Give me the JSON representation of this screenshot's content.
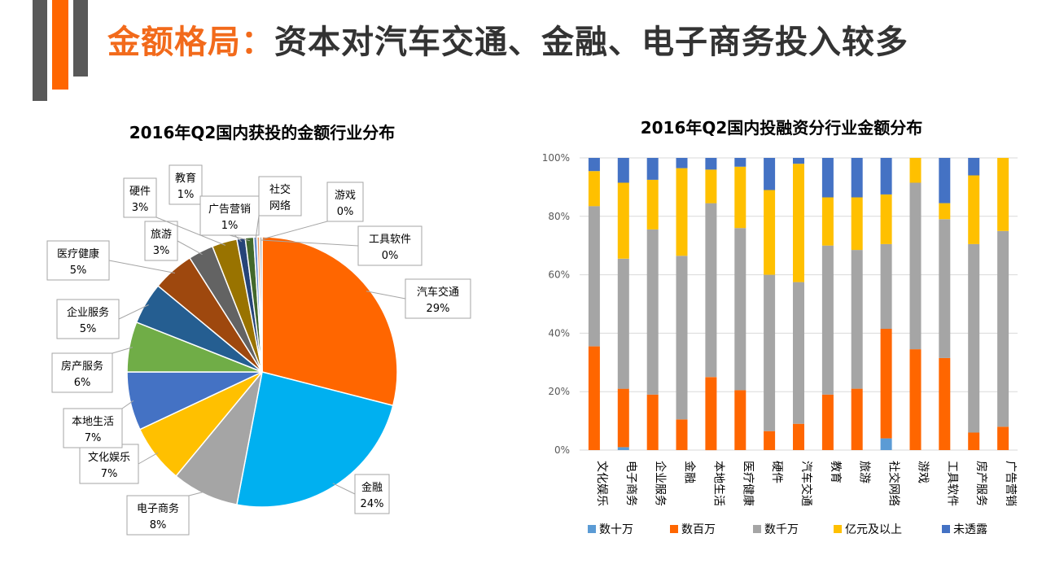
{
  "header": {
    "title_highlight": "金额格局：",
    "title_rest": "资本对汽车交通、金融、电子商务投入较多"
  },
  "chart_data": [
    {
      "type": "pie",
      "title": "2016年Q2国内获投的金额行业分布",
      "slices": [
        {
          "label": "汽车交通",
          "value": 29,
          "pct": "29%",
          "color": "#ff6600"
        },
        {
          "label": "金融",
          "value": 24,
          "pct": "24%",
          "color": "#00b0f0"
        },
        {
          "label": "电子商务",
          "value": 8,
          "pct": "8%",
          "color": "#a5a5a5"
        },
        {
          "label": "文化娱乐",
          "value": 7,
          "pct": "7%",
          "color": "#ffc000"
        },
        {
          "label": "本地生活",
          "value": 7,
          "pct": "7%",
          "color": "#4472c4"
        },
        {
          "label": "房产服务",
          "value": 6,
          "pct": "6%",
          "color": "#70ad47"
        },
        {
          "label": "企业服务",
          "value": 5,
          "pct": "5%",
          "color": "#255e91"
        },
        {
          "label": "医疗健康",
          "value": 5,
          "pct": "5%",
          "color": "#9e480e"
        },
        {
          "label": "旅游",
          "value": 3,
          "pct": "3%",
          "color": "#636363"
        },
        {
          "label": "硬件",
          "value": 3,
          "pct": "3%",
          "color": "#997300"
        },
        {
          "label": "教育",
          "value": 1,
          "pct": "1%",
          "color": "#264478"
        },
        {
          "label": "广告营销",
          "value": 1,
          "pct": "1%",
          "color": "#43682b"
        },
        {
          "label": "社交网络",
          "value": 0.4,
          "pct": "",
          "color": "#698ed0"
        },
        {
          "label": "游戏",
          "value": 0.3,
          "pct": "0%",
          "color": "#f1975a"
        },
        {
          "label": "工具软件",
          "value": 0.3,
          "pct": "0%",
          "color": "#b7b7b7"
        }
      ]
    },
    {
      "type": "bar",
      "stacked": true,
      "title": "2016年Q2国内投融资分行业金额分布",
      "categories": [
        "文化娱乐",
        "电子商务",
        "企业服务",
        "金融",
        "本地生活",
        "医疗健康",
        "硬件",
        "汽车交通",
        "教育",
        "旅游",
        "社交网络",
        "游戏",
        "工具软件",
        "房产服务",
        "广告营销"
      ],
      "series": [
        {
          "name": "数十万",
          "color": "#5b9bd5",
          "values": [
            0,
            1,
            0,
            0,
            0,
            0,
            0,
            0,
            0,
            0,
            4,
            0,
            0,
            0,
            0
          ]
        },
        {
          "name": "数百万",
          "color": "#ff6600",
          "values": [
            35.5,
            20,
            19,
            10.5,
            25,
            20.5,
            6.5,
            9,
            19,
            21,
            37.5,
            34.5,
            31.5,
            6,
            8
          ]
        },
        {
          "name": "数千万",
          "color": "#a5a5a5",
          "values": [
            48,
            44.5,
            56.5,
            56,
            59.5,
            55.5,
            53.5,
            48.5,
            51,
            47.5,
            29,
            57,
            47.5,
            64.5,
            67
          ]
        },
        {
          "name": "亿元及以上",
          "color": "#ffc000",
          "values": [
            12,
            26,
            17,
            30,
            11.5,
            21,
            29,
            40.5,
            16.5,
            18,
            17,
            8.5,
            5.5,
            23.5,
            25
          ]
        },
        {
          "name": "未透露",
          "color": "#4472c4",
          "values": [
            4.5,
            8.5,
            7.5,
            3.5,
            4,
            3,
            11,
            2,
            13.5,
            13.5,
            12.5,
            0,
            15.5,
            6,
            0
          ]
        }
      ],
      "y_ticks": [
        "0%",
        "20%",
        "40%",
        "60%",
        "80%",
        "100%"
      ],
      "ylim": [
        0,
        100
      ]
    }
  ]
}
